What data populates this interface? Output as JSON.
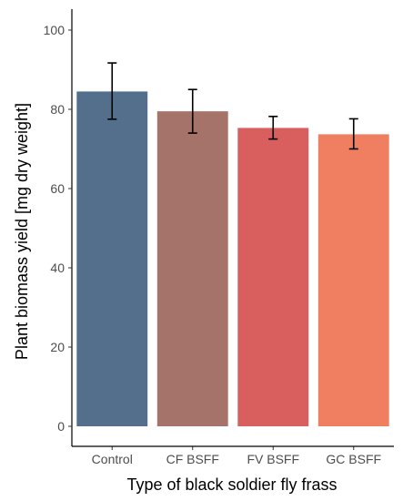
{
  "chart_data": {
    "type": "bar",
    "title": "",
    "xlabel": "Type of black soldier fly frass",
    "ylabel": "Plant biomass yield [mg dry weight]",
    "categories": [
      "Control",
      "CF BSFF",
      "FV BSFF",
      "GC BSFF"
    ],
    "values": [
      84.5,
      79.5,
      75.3,
      73.7
    ],
    "error_low": [
      77.5,
      74.0,
      72.5,
      70.0
    ],
    "error_high": [
      91.7,
      85.0,
      78.2,
      77.6
    ],
    "colors": [
      "#546f8c",
      "#a5736a",
      "#d95f5f",
      "#f07f61"
    ],
    "ylim": [
      0,
      105
    ],
    "yticks": [
      0,
      20,
      40,
      60,
      80,
      100
    ],
    "grid": false,
    "legend": "none"
  }
}
